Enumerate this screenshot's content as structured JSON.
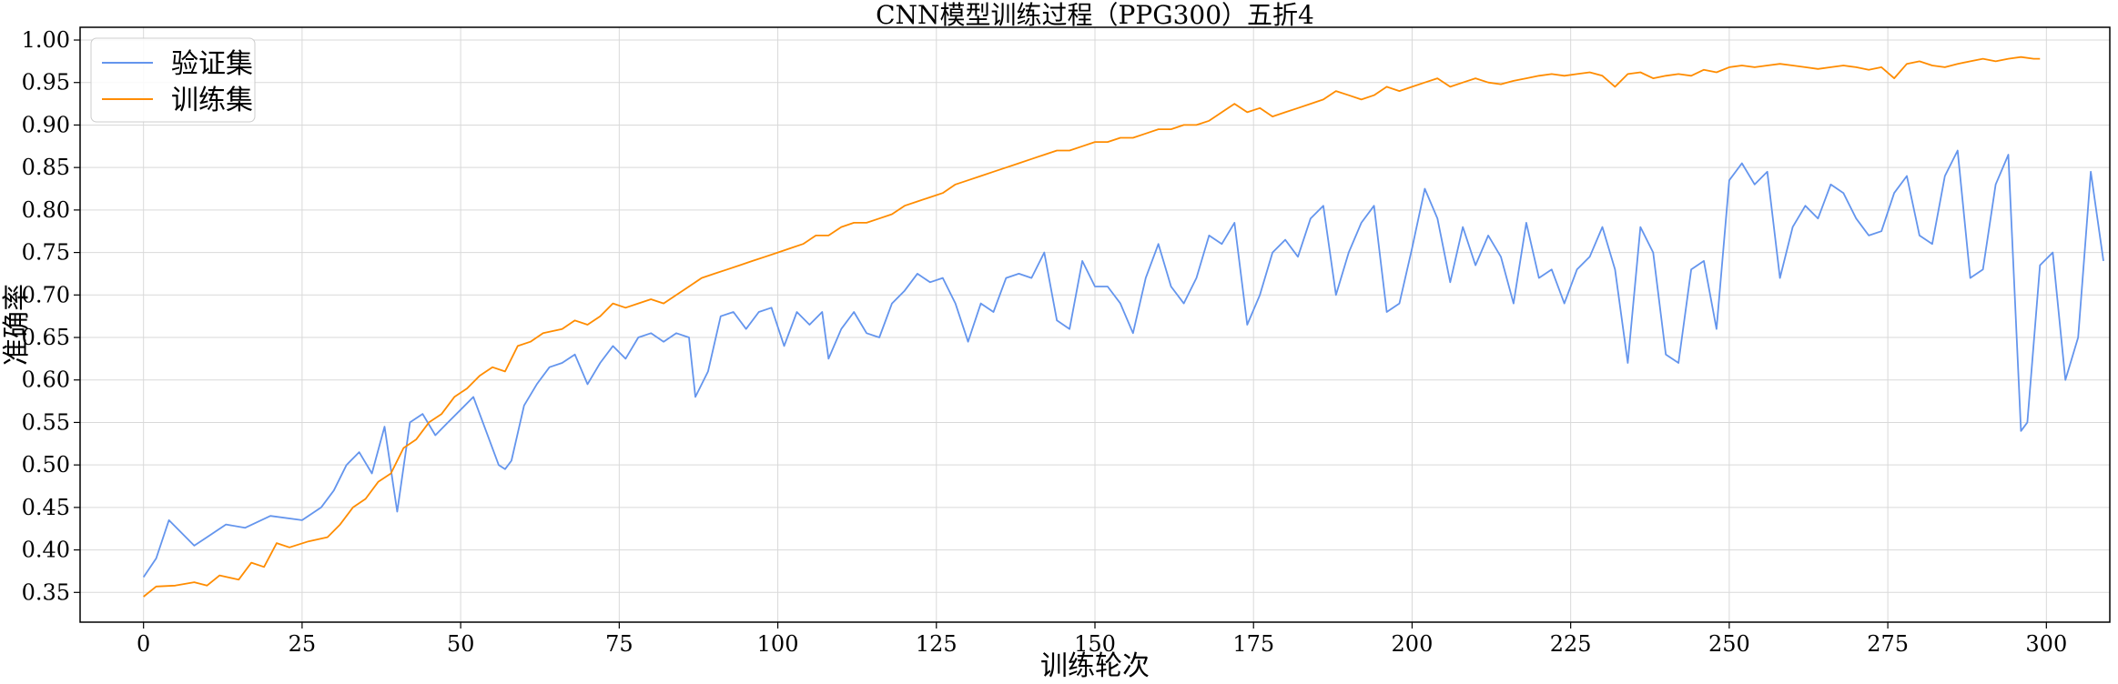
{
  "chart_data": {
    "type": "line",
    "title": "CNN模型训练过程（PPG300）五折4",
    "xlabel": "训练轮次",
    "ylabel": "准确率",
    "xlim": [
      -10,
      310
    ],
    "ylim": [
      0.315,
      1.015
    ],
    "xticks": [
      0,
      25,
      50,
      75,
      100,
      125,
      150,
      175,
      200,
      225,
      250,
      275,
      300
    ],
    "yticks": [
      0.35,
      0.4,
      0.45,
      0.5,
      0.55,
      0.6,
      0.65,
      0.7,
      0.75,
      0.8,
      0.85,
      0.9,
      0.95,
      1.0
    ],
    "grid": true,
    "legend_position": "top-left",
    "series": [
      {
        "name": "验证集",
        "color": "#6495ED",
        "points": [
          [
            0,
            0.368
          ],
          [
            2,
            0.39
          ],
          [
            4,
            0.435
          ],
          [
            6,
            0.42
          ],
          [
            8,
            0.405
          ],
          [
            10,
            0.415
          ],
          [
            13,
            0.43
          ],
          [
            16,
            0.426
          ],
          [
            20,
            0.44
          ],
          [
            25,
            0.435
          ],
          [
            28,
            0.45
          ],
          [
            30,
            0.47
          ],
          [
            32,
            0.5
          ],
          [
            34,
            0.515
          ],
          [
            36,
            0.49
          ],
          [
            38,
            0.545
          ],
          [
            40,
            0.445
          ],
          [
            42,
            0.55
          ],
          [
            44,
            0.56
          ],
          [
            46,
            0.535
          ],
          [
            48,
            0.55
          ],
          [
            52,
            0.58
          ],
          [
            54,
            0.54
          ],
          [
            56,
            0.5
          ],
          [
            57,
            0.495
          ],
          [
            58,
            0.505
          ],
          [
            60,
            0.57
          ],
          [
            62,
            0.595
          ],
          [
            64,
            0.615
          ],
          [
            66,
            0.62
          ],
          [
            68,
            0.63
          ],
          [
            70,
            0.595
          ],
          [
            72,
            0.62
          ],
          [
            74,
            0.64
          ],
          [
            76,
            0.625
          ],
          [
            78,
            0.65
          ],
          [
            80,
            0.655
          ],
          [
            82,
            0.645
          ],
          [
            84,
            0.655
          ],
          [
            86,
            0.65
          ],
          [
            87,
            0.58
          ],
          [
            89,
            0.61
          ],
          [
            91,
            0.675
          ],
          [
            93,
            0.68
          ],
          [
            95,
            0.66
          ],
          [
            97,
            0.68
          ],
          [
            99,
            0.685
          ],
          [
            101,
            0.64
          ],
          [
            103,
            0.68
          ],
          [
            105,
            0.665
          ],
          [
            107,
            0.68
          ],
          [
            108,
            0.625
          ],
          [
            110,
            0.66
          ],
          [
            112,
            0.68
          ],
          [
            114,
            0.655
          ],
          [
            116,
            0.65
          ],
          [
            118,
            0.69
          ],
          [
            120,
            0.705
          ],
          [
            122,
            0.725
          ],
          [
            124,
            0.715
          ],
          [
            126,
            0.72
          ],
          [
            128,
            0.69
          ],
          [
            130,
            0.645
          ],
          [
            132,
            0.69
          ],
          [
            134,
            0.68
          ],
          [
            136,
            0.72
          ],
          [
            138,
            0.725
          ],
          [
            140,
            0.72
          ],
          [
            142,
            0.75
          ],
          [
            144,
            0.67
          ],
          [
            146,
            0.66
          ],
          [
            148,
            0.74
          ],
          [
            150,
            0.71
          ],
          [
            152,
            0.71
          ],
          [
            154,
            0.69
          ],
          [
            156,
            0.655
          ],
          [
            158,
            0.72
          ],
          [
            160,
            0.76
          ],
          [
            162,
            0.71
          ],
          [
            164,
            0.69
          ],
          [
            166,
            0.72
          ],
          [
            168,
            0.77
          ],
          [
            170,
            0.76
          ],
          [
            172,
            0.785
          ],
          [
            174,
            0.665
          ],
          [
            176,
            0.7
          ],
          [
            178,
            0.75
          ],
          [
            180,
            0.765
          ],
          [
            182,
            0.745
          ],
          [
            184,
            0.79
          ],
          [
            186,
            0.805
          ],
          [
            188,
            0.7
          ],
          [
            190,
            0.75
          ],
          [
            192,
            0.785
          ],
          [
            194,
            0.805
          ],
          [
            196,
            0.68
          ],
          [
            198,
            0.69
          ],
          [
            200,
            0.755
          ],
          [
            202,
            0.825
          ],
          [
            204,
            0.79
          ],
          [
            206,
            0.715
          ],
          [
            208,
            0.78
          ],
          [
            210,
            0.735
          ],
          [
            212,
            0.77
          ],
          [
            214,
            0.745
          ],
          [
            216,
            0.69
          ],
          [
            218,
            0.785
          ],
          [
            220,
            0.72
          ],
          [
            222,
            0.73
          ],
          [
            224,
            0.69
          ],
          [
            226,
            0.73
          ],
          [
            228,
            0.745
          ],
          [
            230,
            0.78
          ],
          [
            232,
            0.73
          ],
          [
            234,
            0.62
          ],
          [
            236,
            0.78
          ],
          [
            238,
            0.75
          ],
          [
            240,
            0.63
          ],
          [
            242,
            0.62
          ],
          [
            244,
            0.73
          ],
          [
            246,
            0.74
          ],
          [
            248,
            0.66
          ],
          [
            250,
            0.835
          ],
          [
            252,
            0.855
          ],
          [
            254,
            0.83
          ],
          [
            256,
            0.845
          ],
          [
            258,
            0.72
          ],
          [
            260,
            0.78
          ],
          [
            262,
            0.805
          ],
          [
            264,
            0.79
          ],
          [
            266,
            0.83
          ],
          [
            268,
            0.82
          ],
          [
            270,
            0.79
          ],
          [
            272,
            0.77
          ],
          [
            274,
            0.775
          ],
          [
            276,
            0.82
          ],
          [
            278,
            0.84
          ],
          [
            280,
            0.77
          ],
          [
            282,
            0.76
          ],
          [
            284,
            0.84
          ],
          [
            286,
            0.87
          ],
          [
            288,
            0.72
          ],
          [
            290,
            0.73
          ],
          [
            292,
            0.83
          ],
          [
            294,
            0.865
          ],
          [
            296,
            0.54
          ],
          [
            297,
            0.55
          ],
          [
            299,
            0.735
          ],
          [
            301,
            0.75
          ],
          [
            303,
            0.6
          ],
          [
            305,
            0.65
          ],
          [
            307,
            0.845
          ],
          [
            309,
            0.74
          ]
        ]
      },
      {
        "name": "训练集",
        "color": "#FF8C00",
        "points": [
          [
            0,
            0.345
          ],
          [
            2,
            0.357
          ],
          [
            5,
            0.358
          ],
          [
            8,
            0.362
          ],
          [
            10,
            0.358
          ],
          [
            12,
            0.37
          ],
          [
            15,
            0.365
          ],
          [
            17,
            0.385
          ],
          [
            19,
            0.38
          ],
          [
            21,
            0.408
          ],
          [
            23,
            0.403
          ],
          [
            26,
            0.41
          ],
          [
            29,
            0.415
          ],
          [
            31,
            0.43
          ],
          [
            33,
            0.45
          ],
          [
            35,
            0.46
          ],
          [
            37,
            0.48
          ],
          [
            39,
            0.49
          ],
          [
            41,
            0.52
          ],
          [
            43,
            0.53
          ],
          [
            45,
            0.55
          ],
          [
            47,
            0.56
          ],
          [
            49,
            0.58
          ],
          [
            51,
            0.59
          ],
          [
            53,
            0.605
          ],
          [
            55,
            0.615
          ],
          [
            57,
            0.61
          ],
          [
            59,
            0.64
          ],
          [
            61,
            0.645
          ],
          [
            63,
            0.655
          ],
          [
            66,
            0.66
          ],
          [
            68,
            0.67
          ],
          [
            70,
            0.665
          ],
          [
            72,
            0.675
          ],
          [
            74,
            0.69
          ],
          [
            76,
            0.685
          ],
          [
            78,
            0.69
          ],
          [
            80,
            0.695
          ],
          [
            82,
            0.69
          ],
          [
            84,
            0.7
          ],
          [
            86,
            0.71
          ],
          [
            88,
            0.72
          ],
          [
            90,
            0.725
          ],
          [
            92,
            0.73
          ],
          [
            94,
            0.735
          ],
          [
            96,
            0.74
          ],
          [
            98,
            0.745
          ],
          [
            100,
            0.75
          ],
          [
            102,
            0.755
          ],
          [
            104,
            0.76
          ],
          [
            106,
            0.77
          ],
          [
            108,
            0.77
          ],
          [
            110,
            0.78
          ],
          [
            112,
            0.785
          ],
          [
            114,
            0.785
          ],
          [
            116,
            0.79
          ],
          [
            118,
            0.795
          ],
          [
            120,
            0.805
          ],
          [
            122,
            0.81
          ],
          [
            124,
            0.815
          ],
          [
            126,
            0.82
          ],
          [
            128,
            0.83
          ],
          [
            130,
            0.835
          ],
          [
            132,
            0.84
          ],
          [
            134,
            0.845
          ],
          [
            136,
            0.85
          ],
          [
            138,
            0.855
          ],
          [
            140,
            0.86
          ],
          [
            142,
            0.865
          ],
          [
            144,
            0.87
          ],
          [
            146,
            0.87
          ],
          [
            148,
            0.875
          ],
          [
            150,
            0.88
          ],
          [
            152,
            0.88
          ],
          [
            154,
            0.885
          ],
          [
            156,
            0.885
          ],
          [
            158,
            0.89
          ],
          [
            160,
            0.895
          ],
          [
            162,
            0.895
          ],
          [
            164,
            0.9
          ],
          [
            166,
            0.9
          ],
          [
            168,
            0.905
          ],
          [
            170,
            0.915
          ],
          [
            172,
            0.925
          ],
          [
            174,
            0.915
          ],
          [
            176,
            0.92
          ],
          [
            178,
            0.91
          ],
          [
            180,
            0.915
          ],
          [
            182,
            0.92
          ],
          [
            184,
            0.925
          ],
          [
            186,
            0.93
          ],
          [
            188,
            0.94
          ],
          [
            190,
            0.935
          ],
          [
            192,
            0.93
          ],
          [
            194,
            0.935
          ],
          [
            196,
            0.945
          ],
          [
            198,
            0.94
          ],
          [
            200,
            0.945
          ],
          [
            202,
            0.95
          ],
          [
            204,
            0.955
          ],
          [
            206,
            0.945
          ],
          [
            208,
            0.95
          ],
          [
            210,
            0.955
          ],
          [
            212,
            0.95
          ],
          [
            214,
            0.948
          ],
          [
            216,
            0.952
          ],
          [
            218,
            0.955
          ],
          [
            220,
            0.958
          ],
          [
            222,
            0.96
          ],
          [
            224,
            0.958
          ],
          [
            226,
            0.96
          ],
          [
            228,
            0.962
          ],
          [
            230,
            0.958
          ],
          [
            232,
            0.945
          ],
          [
            234,
            0.96
          ],
          [
            236,
            0.962
          ],
          [
            238,
            0.955
          ],
          [
            240,
            0.958
          ],
          [
            242,
            0.96
          ],
          [
            244,
            0.958
          ],
          [
            246,
            0.965
          ],
          [
            248,
            0.962
          ],
          [
            250,
            0.968
          ],
          [
            252,
            0.97
          ],
          [
            254,
            0.968
          ],
          [
            256,
            0.97
          ],
          [
            258,
            0.972
          ],
          [
            260,
            0.97
          ],
          [
            262,
            0.968
          ],
          [
            264,
            0.966
          ],
          [
            266,
            0.968
          ],
          [
            268,
            0.97
          ],
          [
            270,
            0.968
          ],
          [
            272,
            0.965
          ],
          [
            274,
            0.968
          ],
          [
            276,
            0.955
          ],
          [
            278,
            0.972
          ],
          [
            280,
            0.975
          ],
          [
            282,
            0.97
          ],
          [
            284,
            0.968
          ],
          [
            286,
            0.972
          ],
          [
            288,
            0.975
          ],
          [
            290,
            0.978
          ],
          [
            292,
            0.975
          ],
          [
            294,
            0.978
          ],
          [
            296,
            0.98
          ],
          [
            298,
            0.978
          ],
          [
            299,
            0.978
          ]
        ]
      }
    ]
  }
}
